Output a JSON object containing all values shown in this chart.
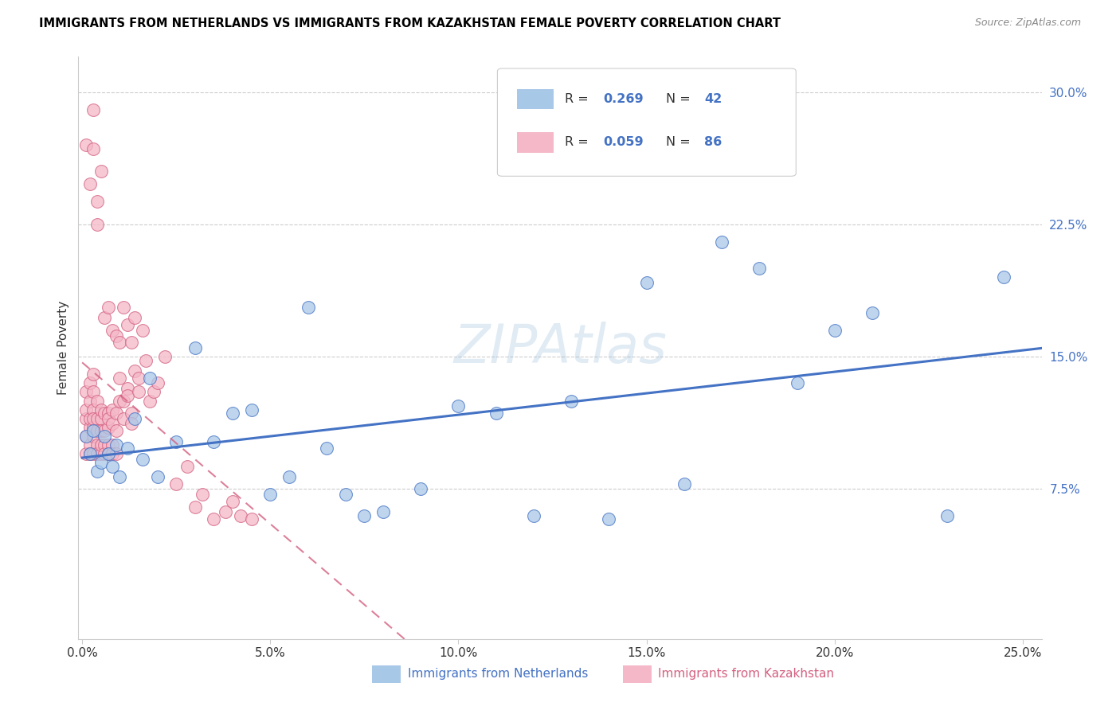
{
  "title": "IMMIGRANTS FROM NETHERLANDS VS IMMIGRANTS FROM KAZAKHSTAN FEMALE POVERTY CORRELATION CHART",
  "source": "Source: ZipAtlas.com",
  "ylabel": "Female Poverty",
  "xlim": [
    -0.001,
    0.255
  ],
  "ylim": [
    -0.01,
    0.32
  ],
  "xtick_labels": [
    "0.0%",
    "5.0%",
    "10.0%",
    "15.0%",
    "20.0%",
    "25.0%"
  ],
  "xtick_values": [
    0,
    0.05,
    0.1,
    0.15,
    0.2,
    0.25
  ],
  "ytick_labels": [
    "7.5%",
    "15.0%",
    "22.5%",
    "30.0%"
  ],
  "ytick_values": [
    0.075,
    0.15,
    0.225,
    0.3
  ],
  "color_netherlands": "#a8c8e8",
  "color_kazakhstan": "#f4b8c8",
  "color_netherlands_line": "#4472c4",
  "color_kazakhstan_line": "#d46080",
  "watermark": "ZIPAtlas",
  "netherlands_x": [
    0.001,
    0.002,
    0.003,
    0.004,
    0.005,
    0.006,
    0.007,
    0.008,
    0.009,
    0.01,
    0.012,
    0.014,
    0.016,
    0.018,
    0.02,
    0.025,
    0.03,
    0.035,
    0.04,
    0.045,
    0.05,
    0.055,
    0.06,
    0.065,
    0.07,
    0.075,
    0.08,
    0.09,
    0.1,
    0.11,
    0.12,
    0.13,
    0.14,
    0.15,
    0.16,
    0.17,
    0.18,
    0.19,
    0.2,
    0.21,
    0.23,
    0.245
  ],
  "netherlands_y": [
    0.105,
    0.095,
    0.108,
    0.085,
    0.09,
    0.105,
    0.095,
    0.088,
    0.1,
    0.082,
    0.098,
    0.115,
    0.092,
    0.138,
    0.082,
    0.102,
    0.155,
    0.102,
    0.118,
    0.12,
    0.072,
    0.082,
    0.178,
    0.098,
    0.072,
    0.06,
    0.062,
    0.075,
    0.122,
    0.118,
    0.06,
    0.125,
    0.058,
    0.192,
    0.078,
    0.215,
    0.2,
    0.135,
    0.165,
    0.175,
    0.06,
    0.195
  ],
  "kazakhstan_x": [
    0.001,
    0.001,
    0.001,
    0.001,
    0.001,
    0.002,
    0.002,
    0.002,
    0.002,
    0.002,
    0.002,
    0.003,
    0.003,
    0.003,
    0.003,
    0.003,
    0.003,
    0.003,
    0.004,
    0.004,
    0.004,
    0.004,
    0.004,
    0.005,
    0.005,
    0.005,
    0.005,
    0.005,
    0.006,
    0.006,
    0.006,
    0.006,
    0.007,
    0.007,
    0.007,
    0.007,
    0.007,
    0.008,
    0.008,
    0.008,
    0.008,
    0.009,
    0.009,
    0.009,
    0.01,
    0.01,
    0.011,
    0.011,
    0.012,
    0.012,
    0.013,
    0.013,
    0.014,
    0.015,
    0.015,
    0.016,
    0.017,
    0.018,
    0.019,
    0.02,
    0.022,
    0.025,
    0.028,
    0.03,
    0.032,
    0.035,
    0.038,
    0.04,
    0.042,
    0.045,
    0.001,
    0.002,
    0.003,
    0.003,
    0.004,
    0.004,
    0.005,
    0.006,
    0.007,
    0.008,
    0.009,
    0.01,
    0.011,
    0.012,
    0.013,
    0.014
  ],
  "kazakhstan_y": [
    0.105,
    0.115,
    0.095,
    0.12,
    0.13,
    0.1,
    0.11,
    0.095,
    0.115,
    0.125,
    0.135,
    0.105,
    0.11,
    0.12,
    0.095,
    0.115,
    0.13,
    0.14,
    0.1,
    0.115,
    0.125,
    0.108,
    0.095,
    0.115,
    0.095,
    0.108,
    0.12,
    0.1,
    0.118,
    0.108,
    0.1,
    0.095,
    0.118,
    0.11,
    0.1,
    0.115,
    0.095,
    0.12,
    0.112,
    0.1,
    0.095,
    0.118,
    0.108,
    0.095,
    0.125,
    0.138,
    0.125,
    0.115,
    0.132,
    0.128,
    0.118,
    0.112,
    0.142,
    0.138,
    0.13,
    0.165,
    0.148,
    0.125,
    0.13,
    0.135,
    0.15,
    0.078,
    0.088,
    0.065,
    0.072,
    0.058,
    0.062,
    0.068,
    0.06,
    0.058,
    0.27,
    0.248,
    0.268,
    0.29,
    0.225,
    0.238,
    0.255,
    0.172,
    0.178,
    0.165,
    0.162,
    0.158,
    0.178,
    0.168,
    0.158,
    0.172
  ]
}
